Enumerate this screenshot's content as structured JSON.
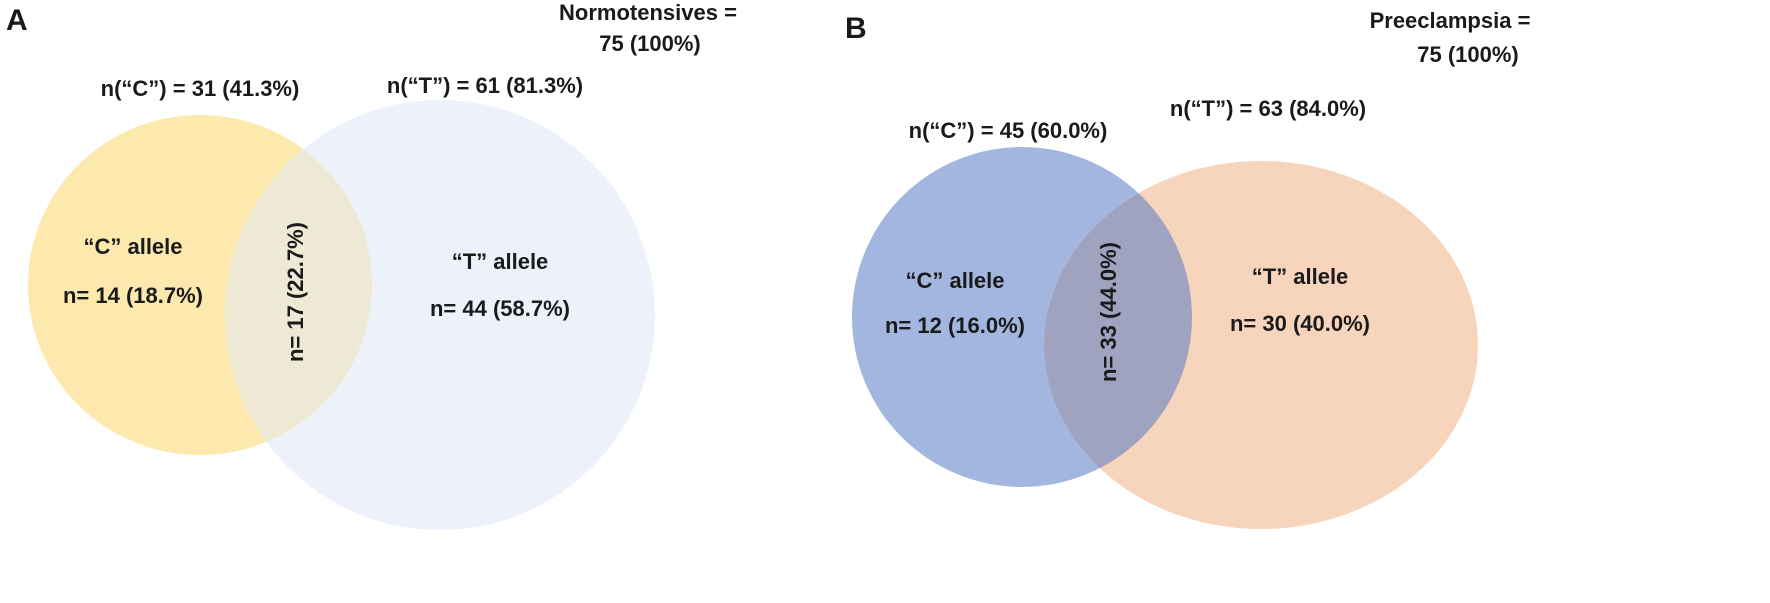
{
  "panels": [
    {
      "letter": "A",
      "title": "Normotensives  =",
      "total": "75 (100%)",
      "set_c": {
        "label": "n(“C”) = 31 (41.3%)",
        "region_name": "“C” allele",
        "region_count": "n= 14 (18.7%)"
      },
      "set_t": {
        "label": "n(“T”) = 61 (81.3%)",
        "region_name": "“T” allele",
        "region_count": "n= 44 (58.7%)"
      },
      "intersection": "n= 17 (22.7%)"
    },
    {
      "letter": "B",
      "title": "Preeclampsia  =",
      "total": "75 (100%)",
      "set_c": {
        "label": "n(“C”) = 45 (60.0%)",
        "region_name": "“C” allele",
        "region_count": "n= 12 (16.0%)"
      },
      "set_t": {
        "label": "n(“T”) = 63 (84.0%)",
        "region_name": "“T” allele",
        "region_count": "n= 30 (40.0%)"
      },
      "intersection": "n= 33 (44.0%)"
    }
  ]
}
